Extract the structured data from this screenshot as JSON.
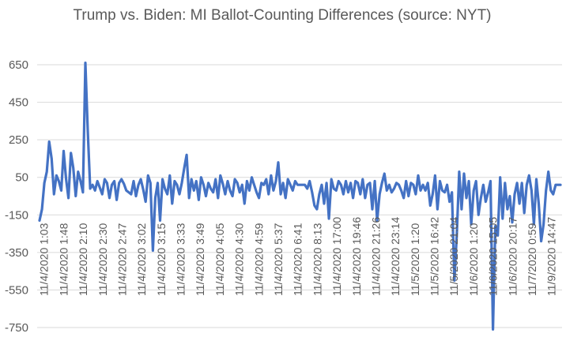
{
  "chart_data": {
    "type": "line",
    "title": "Trump vs. Biden: MI Ballot-Counting Differences (source: NYT)",
    "xlabel": "",
    "ylabel": "",
    "ylim": [
      -750,
      650
    ],
    "yticks": [
      650,
      450,
      250,
      50,
      -150,
      -350,
      -550,
      -750
    ],
    "ytick_labels": [
      "650",
      "450",
      "250",
      "50",
      "-150",
      "-350",
      "-550",
      "-750"
    ],
    "grid": true,
    "legend": "none",
    "colors": {
      "series": "#4472c4",
      "grid": "#d9d9d9",
      "text": "#595959"
    },
    "xtick_labels": [
      "11/4/2020 1:03",
      "11/4/2020 1:48",
      "11/4/2020 2:10",
      "11/4/2020 2:30",
      "11/4/2020 2:47",
      "11/4/2020 3:02",
      "11/4/2020 3:15",
      "11/4/2020 3:33",
      "11/4/2020 3:49",
      "11/4/2020 4:05",
      "11/4/2020 4:30",
      "11/4/2020 4:59",
      "11/4/2020 5:37",
      "11/4/2020 6:41",
      "11/4/2020 8:13",
      "11/4/2020 17:00",
      "11/4/2020 19:46",
      "11/4/2020 21:26",
      "11/4/2020 23:14",
      "11/5/2020 1:20",
      "11/5/2020 16:42",
      "11/5/2020 21:04",
      "11/6/2020 1:20",
      "11/6/2020 15:05",
      "11/6/2020 20:17",
      "11/7/2020 0:59",
      "11/9/2020 14:47"
    ],
    "series": [
      {
        "values": [
          -180,
          -120,
          20,
          80,
          240,
          150,
          -40,
          60,
          30,
          -20,
          190,
          40,
          -60,
          180,
          100,
          -50,
          80,
          30,
          -30,
          660,
          300,
          -10,
          10,
          -20,
          30,
          -5,
          -40,
          40,
          20,
          -60,
          10,
          30,
          -70,
          20,
          40,
          15,
          -20,
          -30,
          -40,
          30,
          -50,
          10,
          40,
          -15,
          -80,
          60,
          20,
          -340,
          -60,
          20,
          -180,
          40,
          -10,
          -40,
          60,
          -90,
          30,
          10,
          -40,
          20,
          100,
          170,
          -60,
          40,
          -20,
          30,
          -70,
          50,
          10,
          -50,
          20,
          -10,
          -30,
          40,
          -60,
          60,
          15,
          -40,
          30,
          -20,
          -50,
          40,
          20,
          -30,
          10,
          -90,
          30,
          -20,
          50,
          10,
          -30,
          -60,
          20,
          10,
          40,
          -40,
          60,
          -20,
          30,
          130,
          -40,
          20,
          -60,
          40,
          10,
          -20,
          30,
          10,
          10,
          10,
          10,
          -10,
          30,
          -30,
          -100,
          -120,
          -40,
          10,
          -90,
          20,
          -170,
          40,
          -10,
          -20,
          30,
          10,
          -40,
          30,
          -30,
          20,
          -60,
          30,
          20,
          -40,
          40,
          -60,
          10,
          20,
          -120,
          30,
          -180,
          -40,
          20,
          70,
          -20,
          10,
          -30,
          -10,
          20,
          10,
          -20,
          -60,
          30,
          -50,
          20,
          10,
          -40,
          60,
          -20,
          10,
          -20,
          20,
          -100,
          -40,
          60,
          -120,
          30,
          -20,
          -30,
          10,
          -80,
          -30,
          -500,
          -260,
          80,
          -120,
          70,
          -60,
          30,
          -200,
          -20,
          30,
          -150,
          -60,
          10,
          -80,
          -30,
          30,
          -760,
          -210,
          -260,
          50,
          -170,
          20,
          -120,
          -50,
          -190,
          -40,
          20,
          -90,
          20,
          -140,
          10,
          60,
          -20,
          -200,
          40,
          -90,
          -290,
          -200,
          -20,
          80,
          -20,
          -40,
          10,
          10,
          10
        ]
      }
    ]
  }
}
